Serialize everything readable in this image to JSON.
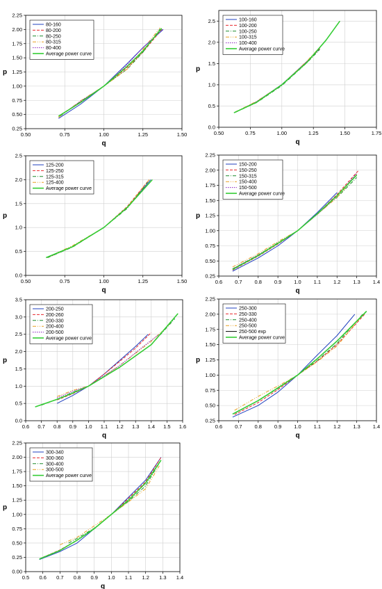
{
  "colors": {
    "grid": "#cfcfcf",
    "axis": "#000000",
    "legend_border": "#000000"
  },
  "chart_data": [
    {
      "type": "line",
      "xlabel": "q",
      "ylabel": "p",
      "xlim": [
        0.5,
        1.5
      ],
      "ylim": [
        0.25,
        2.25
      ],
      "xticks": [
        "0.50",
        "0.75",
        "1.00",
        "1.25",
        "1.50"
      ],
      "yticks": [
        "0.25",
        "0.50",
        "0.75",
        "1.00",
        "1.25",
        "1.50",
        "1.75",
        "2.00",
        "2.25"
      ],
      "grid": true,
      "legend_position": "top-left",
      "series": [
        {
          "name": "80-160",
          "color": "#1f3fbf",
          "dash": "",
          "x": [
            0.71,
            0.85,
            1.0,
            1.15,
            1.25,
            1.38
          ],
          "y": [
            0.43,
            0.68,
            1.0,
            1.4,
            1.68,
            2.0
          ]
        },
        {
          "name": "80-200",
          "color": "#e8262b",
          "dash": "4,2",
          "x": [
            0.71,
            0.85,
            1.0,
            1.15,
            1.25,
            1.37
          ],
          "y": [
            0.47,
            0.72,
            1.0,
            1.33,
            1.6,
            2.0
          ]
        },
        {
          "name": "80-250",
          "color": "#1a8a2a",
          "dash": "5,2,1,2",
          "x": [
            0.72,
            0.85,
            1.0,
            1.15,
            1.25,
            1.36
          ],
          "y": [
            0.47,
            0.73,
            1.0,
            1.3,
            1.6,
            2.01
          ]
        },
        {
          "name": "80-315",
          "color": "#e8a020",
          "dash": "5,2,1,2,1,2",
          "x": [
            0.71,
            0.85,
            1.0,
            1.15,
            1.25,
            1.36
          ],
          "y": [
            0.45,
            0.74,
            1.0,
            1.3,
            1.65,
            2.03
          ]
        },
        {
          "name": "80-400",
          "color": "#8b1fbf",
          "dash": "1.5,1.5",
          "x": [
            0.72,
            0.85,
            1.0,
            1.15,
            1.25,
            1.38
          ],
          "y": [
            0.48,
            0.73,
            1.0,
            1.38,
            1.68,
            2.01
          ]
        },
        {
          "name": "Average power curve",
          "color": "#33cc33",
          "dash": "",
          "width": 1.6,
          "x": [
            0.71,
            0.85,
            1.0,
            1.15,
            1.25,
            1.37
          ],
          "y": [
            0.47,
            0.71,
            1.0,
            1.35,
            1.62,
            2.02
          ]
        }
      ]
    },
    {
      "type": "line",
      "xlabel": "q",
      "ylabel": "p",
      "xlim": [
        0.5,
        1.75
      ],
      "ylim": [
        0.0,
        2.75
      ],
      "xticks": [
        "0.50",
        "0.75",
        "1.00",
        "1.25",
        "1.50",
        "1.75"
      ],
      "yticks": [
        "0.0",
        "0.5",
        "1.0",
        "1.5",
        "2.0",
        "2.5"
      ],
      "grid": true,
      "legend_position": "top-left",
      "series": [
        {
          "name": "100-160",
          "color": "#1f3fbf",
          "dash": "",
          "x": [
            0.63,
            0.8,
            1.0,
            1.2,
            1.3
          ],
          "y": [
            0.35,
            0.6,
            1.0,
            1.55,
            1.85
          ]
        },
        {
          "name": "100-200",
          "color": "#e8262b",
          "dash": "4,2",
          "x": [
            0.63,
            0.8,
            1.0,
            1.2,
            1.3
          ],
          "y": [
            0.35,
            0.6,
            1.0,
            1.55,
            1.85
          ]
        },
        {
          "name": "100-250",
          "color": "#1a8a2a",
          "dash": "5,2,1,2",
          "x": [
            0.63,
            0.8,
            1.0,
            1.2,
            1.3
          ],
          "y": [
            0.35,
            0.58,
            0.98,
            1.52,
            1.83
          ]
        },
        {
          "name": "100-315",
          "color": "#e8a020",
          "dash": "5,2,1,2,1,2",
          "x": [
            0.63,
            0.8,
            1.0,
            1.2,
            1.3
          ],
          "y": [
            0.36,
            0.61,
            1.0,
            1.56,
            1.88
          ]
        },
        {
          "name": "100-400",
          "color": "#8b1fbf",
          "dash": "1.5,1.5",
          "x": [
            0.63,
            0.8,
            1.0,
            1.2,
            1.3
          ],
          "y": [
            0.35,
            0.6,
            1.01,
            1.55,
            1.86
          ]
        },
        {
          "name": "Average power curve",
          "color": "#33cc33",
          "dash": "",
          "width": 1.6,
          "x": [
            0.62,
            0.8,
            1.0,
            1.2,
            1.35,
            1.46
          ],
          "y": [
            0.34,
            0.59,
            1.0,
            1.53,
            2.05,
            2.5
          ]
        }
      ]
    },
    {
      "type": "line",
      "xlabel": "q",
      "ylabel": "p",
      "xlim": [
        0.5,
        1.5
      ],
      "ylim": [
        0.0,
        2.5
      ],
      "xticks": [
        "0.50",
        "0.75",
        "1.00",
        "1.25",
        "1.50"
      ],
      "yticks": [
        "0.0",
        "0.5",
        "1.0",
        "1.5",
        "2.0",
        "2.5"
      ],
      "grid": true,
      "legend_position": "top-left",
      "series": [
        {
          "name": "125-200",
          "color": "#1f3fbf",
          "dash": "",
          "x": [
            0.64,
            0.8,
            1.0,
            1.15,
            1.3
          ],
          "y": [
            0.38,
            0.6,
            1.0,
            1.42,
            2.0
          ]
        },
        {
          "name": "125-250",
          "color": "#e8262b",
          "dash": "4,2",
          "x": [
            0.64,
            0.8,
            1.0,
            1.15,
            1.29
          ],
          "y": [
            0.37,
            0.6,
            1.0,
            1.44,
            2.0
          ]
        },
        {
          "name": "125-315",
          "color": "#1a8a2a",
          "dash": "5,2,1,2",
          "x": [
            0.64,
            0.8,
            1.0,
            1.15,
            1.28
          ],
          "y": [
            0.37,
            0.59,
            1.0,
            1.4,
            1.95
          ]
        },
        {
          "name": "125-400",
          "color": "#e8a020",
          "dash": "5,2,1,2,1,2",
          "x": [
            0.64,
            0.8,
            1.0,
            1.15,
            1.29
          ],
          "y": [
            0.38,
            0.62,
            1.0,
            1.43,
            2.0
          ]
        },
        {
          "name": "Average power curve",
          "color": "#33cc33",
          "dash": "",
          "width": 1.6,
          "x": [
            0.63,
            0.8,
            1.0,
            1.15,
            1.31
          ],
          "y": [
            0.37,
            0.6,
            1.0,
            1.42,
            2.0
          ]
        }
      ]
    },
    {
      "type": "line",
      "xlabel": "q",
      "ylabel": "p",
      "xlim": [
        0.6,
        1.4
      ],
      "ylim": [
        0.25,
        2.25
      ],
      "xticks": [
        "0.6",
        "0.7",
        "0.8",
        "0.9",
        "1.0",
        "1.1",
        "1.2",
        "1.3",
        "1.4"
      ],
      "yticks": [
        "0.25",
        "0.50",
        "0.75",
        "1.00",
        "1.25",
        "1.50",
        "1.75",
        "2.00",
        "2.25"
      ],
      "grid": true,
      "legend_position": "top-left",
      "series": [
        {
          "name": "150-200",
          "color": "#1f3fbf",
          "dash": "",
          "x": [
            0.67,
            0.8,
            0.9,
            1.0,
            1.1,
            1.2
          ],
          "y": [
            0.33,
            0.55,
            0.75,
            1.0,
            1.3,
            1.63
          ]
        },
        {
          "name": "150-250",
          "color": "#e8262b",
          "dash": "4,2",
          "x": [
            0.67,
            0.8,
            0.9,
            1.0,
            1.1,
            1.2,
            1.31
          ],
          "y": [
            0.35,
            0.58,
            0.78,
            1.0,
            1.28,
            1.6,
            2.0
          ]
        },
        {
          "name": "150-315",
          "color": "#1a8a2a",
          "dash": "5,2,1,2",
          "x": [
            0.67,
            0.8,
            0.9,
            1.0,
            1.1,
            1.2,
            1.3
          ],
          "y": [
            0.37,
            0.6,
            0.8,
            1.0,
            1.28,
            1.55,
            1.88
          ]
        },
        {
          "name": "150-400",
          "color": "#e8a020",
          "dash": "5,2,1,2,1,2",
          "x": [
            0.67,
            0.8,
            0.9,
            1.0,
            1.1,
            1.2,
            1.3
          ],
          "y": [
            0.4,
            0.62,
            0.82,
            1.0,
            1.27,
            1.55,
            1.93
          ]
        },
        {
          "name": "150-500",
          "color": "#8b1fbf",
          "dash": "1.5,1.5",
          "x": [
            0.67,
            0.8,
            0.9,
            1.0,
            1.1,
            1.2,
            1.3
          ],
          "y": [
            0.37,
            0.6,
            0.79,
            1.0,
            1.27,
            1.57,
            1.95
          ]
        },
        {
          "name": "Average power curve",
          "color": "#33cc33",
          "dash": "",
          "width": 1.6,
          "x": [
            0.67,
            0.8,
            0.9,
            1.0,
            1.1,
            1.2,
            1.3
          ],
          "y": [
            0.36,
            0.59,
            0.79,
            1.0,
            1.28,
            1.58,
            1.92
          ]
        }
      ]
    },
    {
      "type": "line",
      "xlabel": "q",
      "ylabel": "p",
      "xlim": [
        0.6,
        1.6
      ],
      "ylim": [
        0.0,
        3.5
      ],
      "xticks": [
        "0.6",
        "0.7",
        "0.8",
        "0.9",
        "1.0",
        "1.1",
        "1.2",
        "1.3",
        "1.4",
        "1.5",
        "1.6"
      ],
      "yticks": [
        "0.0",
        "0.5",
        "1.0",
        "1.5",
        "2.0",
        "2.5",
        "3.0",
        "3.5"
      ],
      "grid": true,
      "legend_position": "top-left",
      "series": [
        {
          "name": "200-250",
          "color": "#1f3fbf",
          "dash": "",
          "x": [
            0.8,
            0.9,
            1.0,
            1.1,
            1.2,
            1.3,
            1.38
          ],
          "y": [
            0.5,
            0.73,
            1.0,
            1.35,
            1.75,
            2.15,
            2.5
          ]
        },
        {
          "name": "200-260",
          "color": "#e8262b",
          "dash": "4,2",
          "x": [
            0.8,
            0.9,
            1.0,
            1.1,
            1.2,
            1.3,
            1.4
          ],
          "y": [
            0.6,
            0.78,
            1.0,
            1.35,
            1.72,
            2.1,
            2.55
          ]
        },
        {
          "name": "200-330",
          "color": "#1a8a2a",
          "dash": "5,2,1,2",
          "x": [
            0.7,
            0.8,
            0.9,
            1.0,
            1.2,
            1.4,
            1.55
          ],
          "y": [
            0.45,
            0.62,
            0.82,
            1.0,
            1.55,
            2.2,
            2.95
          ]
        },
        {
          "name": "200-400",
          "color": "#e8a020",
          "dash": "5,2,1,2,1,2",
          "x": [
            0.8,
            0.9,
            1.0,
            1.2,
            1.4,
            1.52
          ],
          "y": [
            0.7,
            0.88,
            1.0,
            1.6,
            2.3,
            2.8
          ]
        },
        {
          "name": "200-500",
          "color": "#8b1fbf",
          "dash": "1.5,1.5",
          "x": [
            0.8,
            0.9,
            1.0,
            1.2,
            1.35,
            1.45
          ],
          "y": [
            0.66,
            0.85,
            1.0,
            1.6,
            2.15,
            2.5
          ]
        },
        {
          "name": "Average power curve",
          "color": "#33cc33",
          "dash": "",
          "width": 1.6,
          "x": [
            0.66,
            0.8,
            0.9,
            1.0,
            1.2,
            1.4,
            1.57
          ],
          "y": [
            0.4,
            0.62,
            0.8,
            1.0,
            1.55,
            2.2,
            3.1
          ]
        }
      ]
    },
    {
      "type": "line",
      "xlabel": "q",
      "ylabel": "p",
      "xlim": [
        0.6,
        1.4
      ],
      "ylim": [
        0.25,
        2.25
      ],
      "xticks": [
        "0.6",
        "0.7",
        "0.8",
        "0.9",
        "1.0",
        "1.1",
        "1.2",
        "1.3",
        "1.4"
      ],
      "yticks": [
        "0.25",
        "0.50",
        "0.75",
        "1.00",
        "1.25",
        "1.50",
        "1.75",
        "2.00",
        "2.25"
      ],
      "grid": true,
      "legend_position": "top-left",
      "series": [
        {
          "name": "250-300",
          "color": "#1f3fbf",
          "dash": "",
          "x": [
            0.67,
            0.8,
            0.9,
            1.0,
            1.1,
            1.2,
            1.29
          ],
          "y": [
            0.31,
            0.5,
            0.72,
            1.0,
            1.33,
            1.65,
            2.0
          ]
        },
        {
          "name": "250-330",
          "color": "#e8262b",
          "dash": "4,2",
          "x": [
            0.68,
            0.8,
            0.9,
            1.0,
            1.1,
            1.2,
            1.34
          ],
          "y": [
            0.35,
            0.55,
            0.76,
            1.0,
            1.23,
            1.5,
            2.0
          ]
        },
        {
          "name": "250-400",
          "color": "#1a8a2a",
          "dash": "5,2,1,2",
          "x": [
            0.68,
            0.8,
            0.9,
            1.0,
            1.1,
            1.2,
            1.33
          ],
          "y": [
            0.37,
            0.58,
            0.78,
            1.0,
            1.24,
            1.52,
            2.0
          ]
        },
        {
          "name": "250-500",
          "color": "#e8a020",
          "dash": "5,2,1,2,1,2",
          "x": [
            0.68,
            0.8,
            0.9,
            1.0,
            1.1,
            1.2,
            1.32
          ],
          "y": [
            0.42,
            0.65,
            0.82,
            1.0,
            1.22,
            1.48,
            1.95
          ]
        },
        {
          "name": "250-500 exp",
          "color": "#000000",
          "dash": "",
          "x": [],
          "y": []
        },
        {
          "name": "Average power curve",
          "color": "#33cc33",
          "dash": "",
          "width": 1.6,
          "x": [
            0.67,
            0.8,
            0.9,
            1.0,
            1.1,
            1.2,
            1.35
          ],
          "y": [
            0.36,
            0.58,
            0.79,
            1.0,
            1.27,
            1.56,
            2.05
          ]
        }
      ]
    },
    {
      "type": "line",
      "xlabel": "q",
      "ylabel": "p",
      "xlim": [
        0.5,
        1.4
      ],
      "ylim": [
        0.0,
        2.25
      ],
      "xticks": [
        "0.5",
        "0.6",
        "0.7",
        "0.8",
        "0.9",
        "1.0",
        "1.1",
        "1.2",
        "1.3",
        "1.4"
      ],
      "yticks": [
        "0.00",
        "0.25",
        "0.50",
        "0.75",
        "1.00",
        "1.25",
        "1.50",
        "1.75",
        "2.00",
        "2.25"
      ],
      "grid": true,
      "legend_position": "top-left",
      "series": [
        {
          "name": "300-340",
          "color": "#1f3fbf",
          "dash": "",
          "x": [
            0.58,
            0.7,
            0.8,
            0.9,
            1.0,
            1.1,
            1.2,
            1.29
          ],
          "y": [
            0.21,
            0.35,
            0.5,
            0.75,
            1.0,
            1.3,
            1.6,
            2.0
          ]
        },
        {
          "name": "300-360",
          "color": "#e8262b",
          "dash": "4,2",
          "x": [
            0.6,
            0.7,
            0.8,
            0.9,
            1.0,
            1.1,
            1.2,
            1.29
          ],
          "y": [
            0.25,
            0.38,
            0.55,
            0.75,
            1.0,
            1.28,
            1.57,
            2.0
          ]
        },
        {
          "name": "300-400",
          "color": "#1a8a2a",
          "dash": "5,2,1,2",
          "x": [
            0.75,
            0.8,
            0.9,
            1.0,
            1.1,
            1.2,
            1.28
          ],
          "y": [
            0.5,
            0.58,
            0.76,
            1.0,
            1.23,
            1.5,
            1.9
          ]
        },
        {
          "name": "300-500",
          "color": "#e8a020",
          "dash": "5,2,1,2,1,2",
          "x": [
            0.7,
            0.8,
            0.9,
            1.0,
            1.1,
            1.2,
            1.28
          ],
          "y": [
            0.47,
            0.6,
            0.8,
            1.0,
            1.22,
            1.45,
            1.85
          ]
        },
        {
          "name": "Average power curve",
          "color": "#33cc33",
          "dash": "",
          "width": 1.6,
          "x": [
            0.58,
            0.7,
            0.8,
            0.9,
            1.0,
            1.1,
            1.2,
            1.29
          ],
          "y": [
            0.22,
            0.37,
            0.55,
            0.75,
            1.0,
            1.25,
            1.55,
            1.95
          ]
        }
      ]
    }
  ]
}
